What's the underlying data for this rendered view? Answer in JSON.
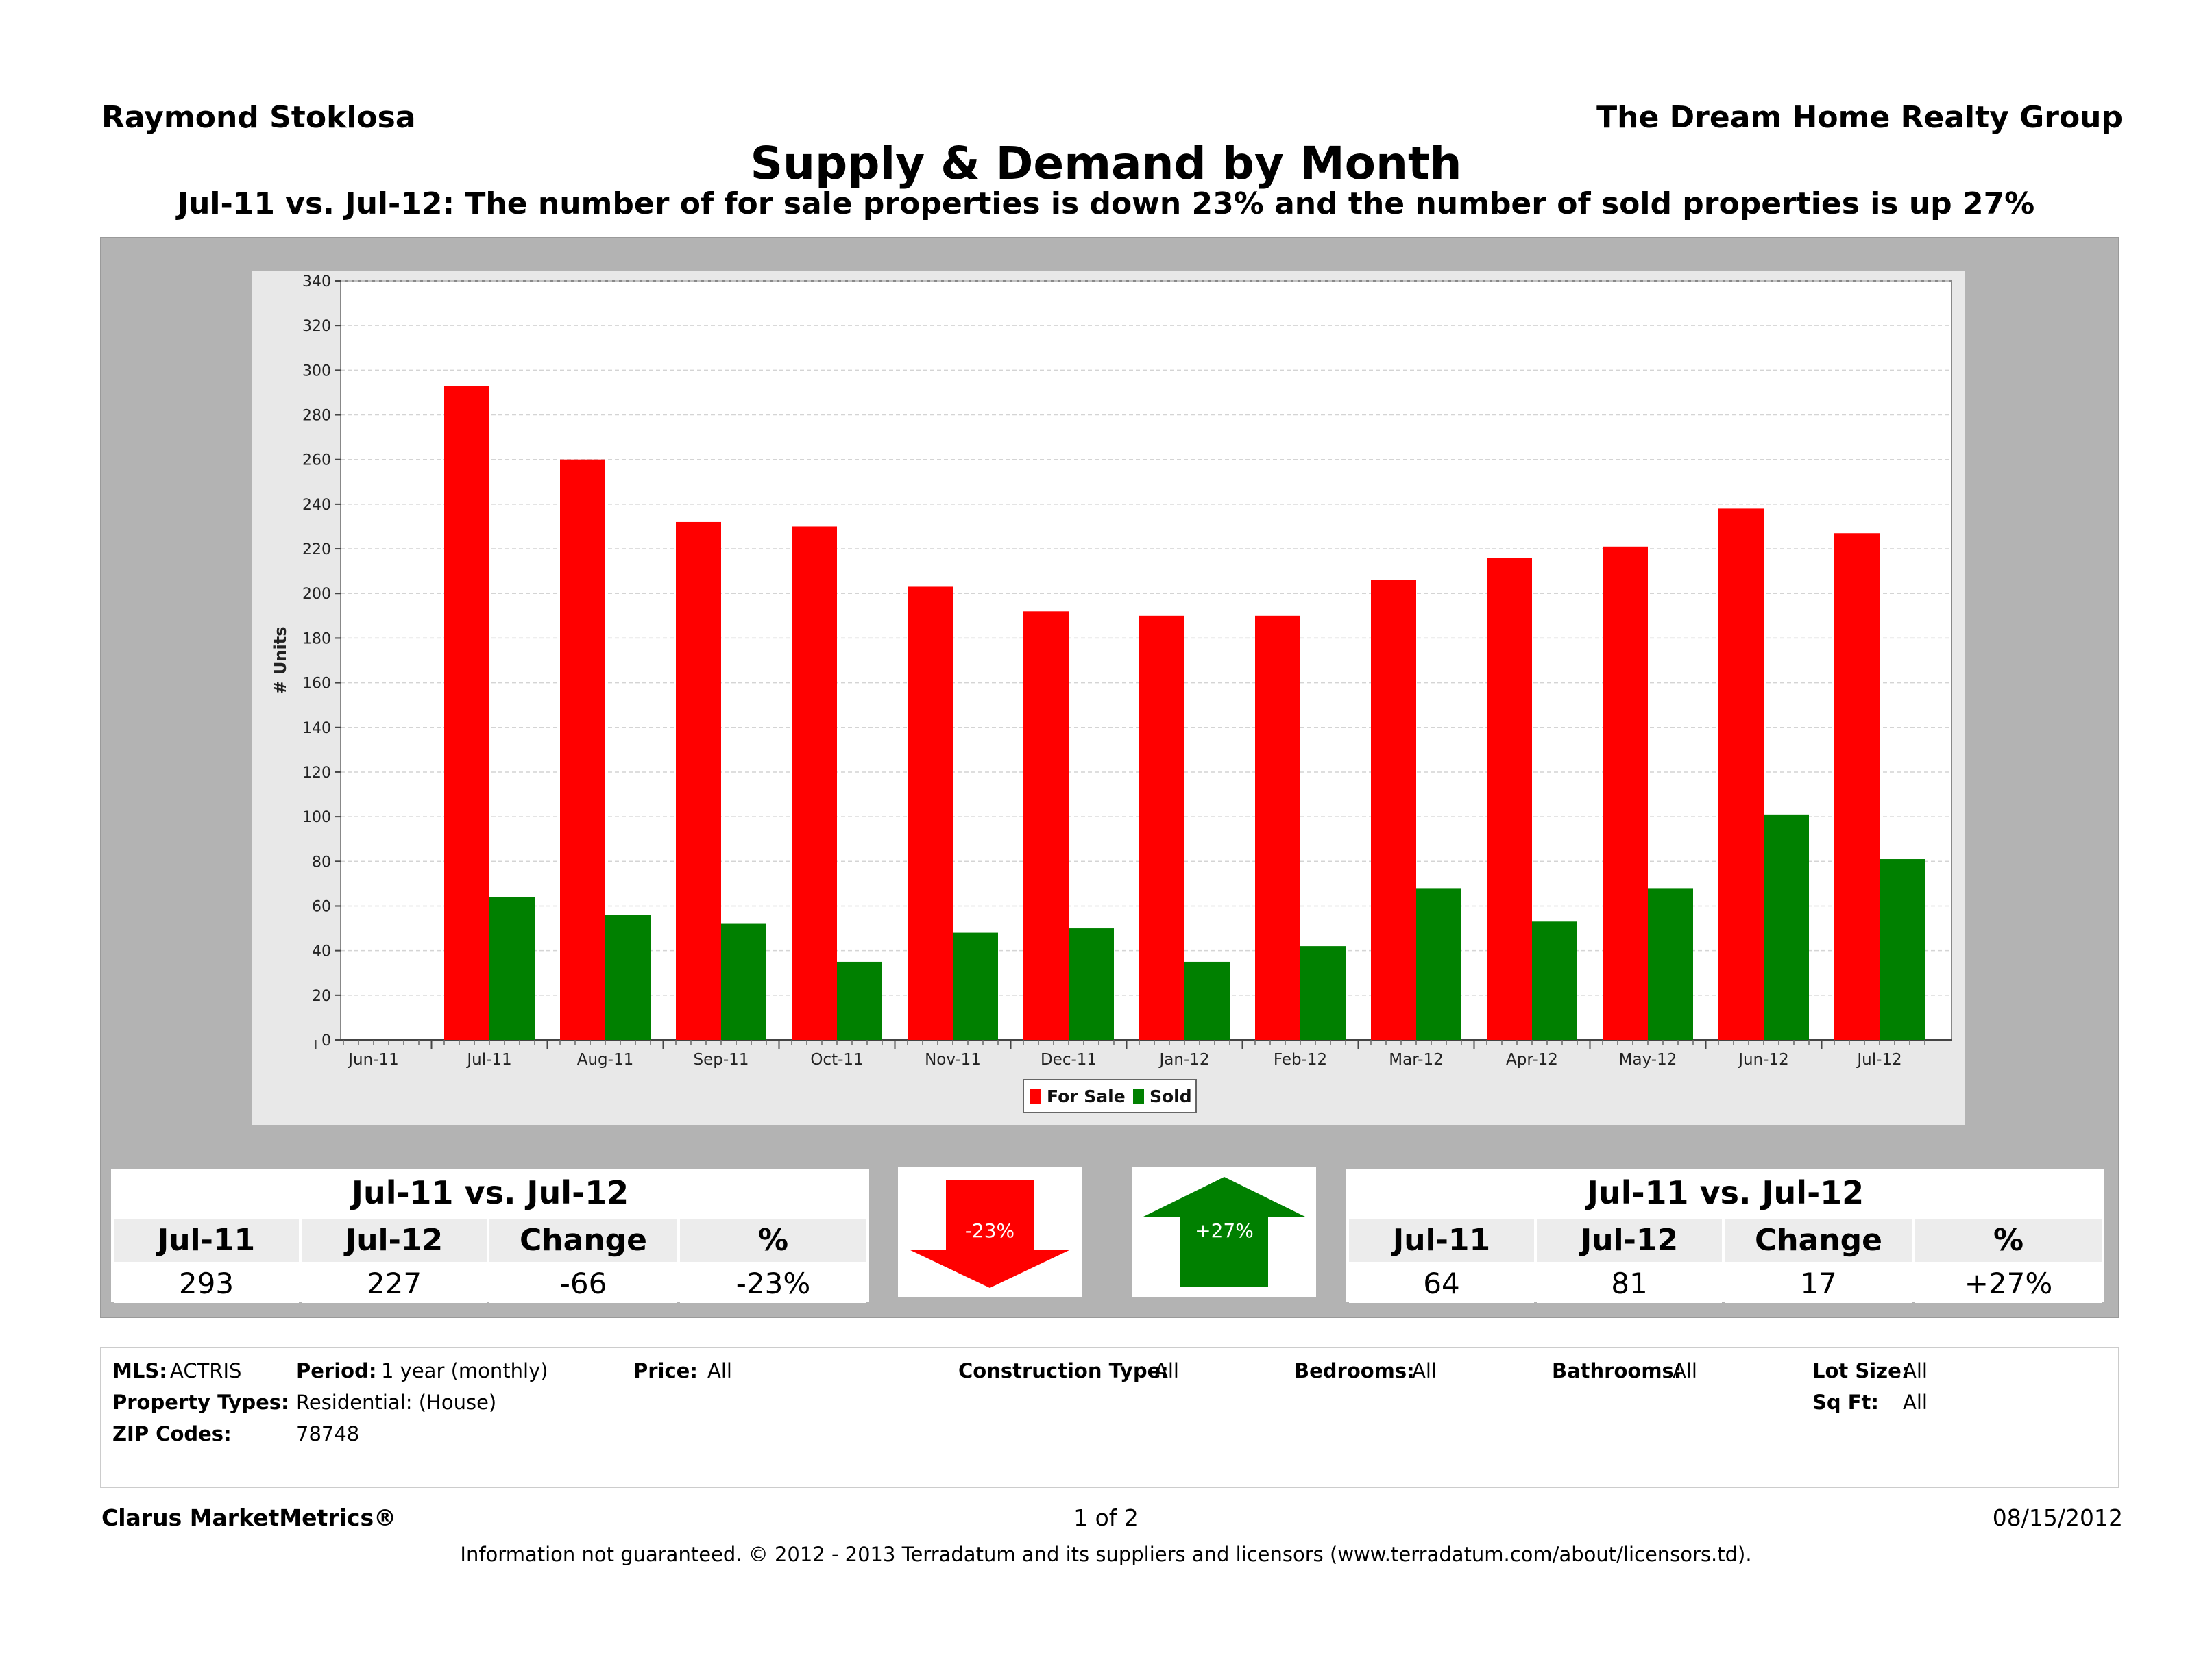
{
  "header": {
    "agent_name": "Raymond Stoklosa",
    "company": "The Dream Home Realty Group",
    "title": "Supply & Demand by Month",
    "subtitle": "Jul-11 vs. Jul-12:  The number of for sale properties is down 23% and the number of sold properties is up 27%"
  },
  "chart_data": {
    "type": "bar",
    "categories": [
      "Jun-11",
      "Jul-11",
      "Aug-11",
      "Sep-11",
      "Oct-11",
      "Nov-11",
      "Dec-11",
      "Jan-12",
      "Feb-12",
      "Mar-12",
      "Apr-12",
      "May-12",
      "Jun-12",
      "Jul-12"
    ],
    "series": [
      {
        "name": "For Sale",
        "color": "#ff0000",
        "values": [
          null,
          293,
          260,
          232,
          230,
          203,
          192,
          190,
          190,
          206,
          216,
          221,
          238,
          227
        ]
      },
      {
        "name": "Sold",
        "color": "#008000",
        "values": [
          null,
          64,
          56,
          52,
          35,
          48,
          50,
          35,
          42,
          68,
          53,
          68,
          101,
          81
        ]
      }
    ],
    "ylabel": "# Units",
    "xlabel": "",
    "ylim": [
      0,
      340
    ],
    "yticks": [
      0,
      20,
      40,
      60,
      80,
      100,
      120,
      140,
      160,
      180,
      200,
      220,
      240,
      260,
      280,
      300,
      320,
      340
    ],
    "grid": true,
    "legend_position": "bottom-center"
  },
  "stats_left": {
    "title": "Jul-11 vs. Jul-12",
    "headers": [
      "Jul-11",
      "Jul-12",
      "Change",
      "%"
    ],
    "values": [
      "293",
      "227",
      "-66",
      "-23%"
    ]
  },
  "stats_right": {
    "title": "Jul-11 vs. Jul-12",
    "headers": [
      "Jul-11",
      "Jul-12",
      "Change",
      "%"
    ],
    "values": [
      "64",
      "81",
      "17",
      "+27%"
    ]
  },
  "arrow_down": {
    "label": "-23%",
    "color": "#ff0000"
  },
  "arrow_up": {
    "label": "+27%",
    "color": "#008000"
  },
  "criteria": {
    "mls_label": "MLS:",
    "mls_value": "ACTRIS",
    "period_label": "Period:",
    "period_value": "1 year (monthly)",
    "price_label": "Price:",
    "price_value": "All",
    "construction_label": "Construction Type:",
    "construction_value": "All",
    "bedrooms_label": "Bedrooms:",
    "bedrooms_value": "All",
    "bathrooms_label": "Bathrooms:",
    "bathrooms_value": "All",
    "lotsize_label": "Lot Size:",
    "lotsize_value": "All",
    "sqft_label": "Sq Ft:",
    "sqft_value": "All",
    "proptypes_label": "Property Types:",
    "proptypes_value": "Residential: (House)",
    "zip_label": "ZIP Codes:",
    "zip_value": "78748"
  },
  "footer": {
    "brand": "Clarus MarketMetrics®",
    "page": "1 of 2",
    "date": "08/15/2012",
    "disclaimer": "Information not guaranteed.  © 2012 - 2013 Terradatum and its suppliers and licensors (www.terradatum.com/about/licensors.td)."
  }
}
